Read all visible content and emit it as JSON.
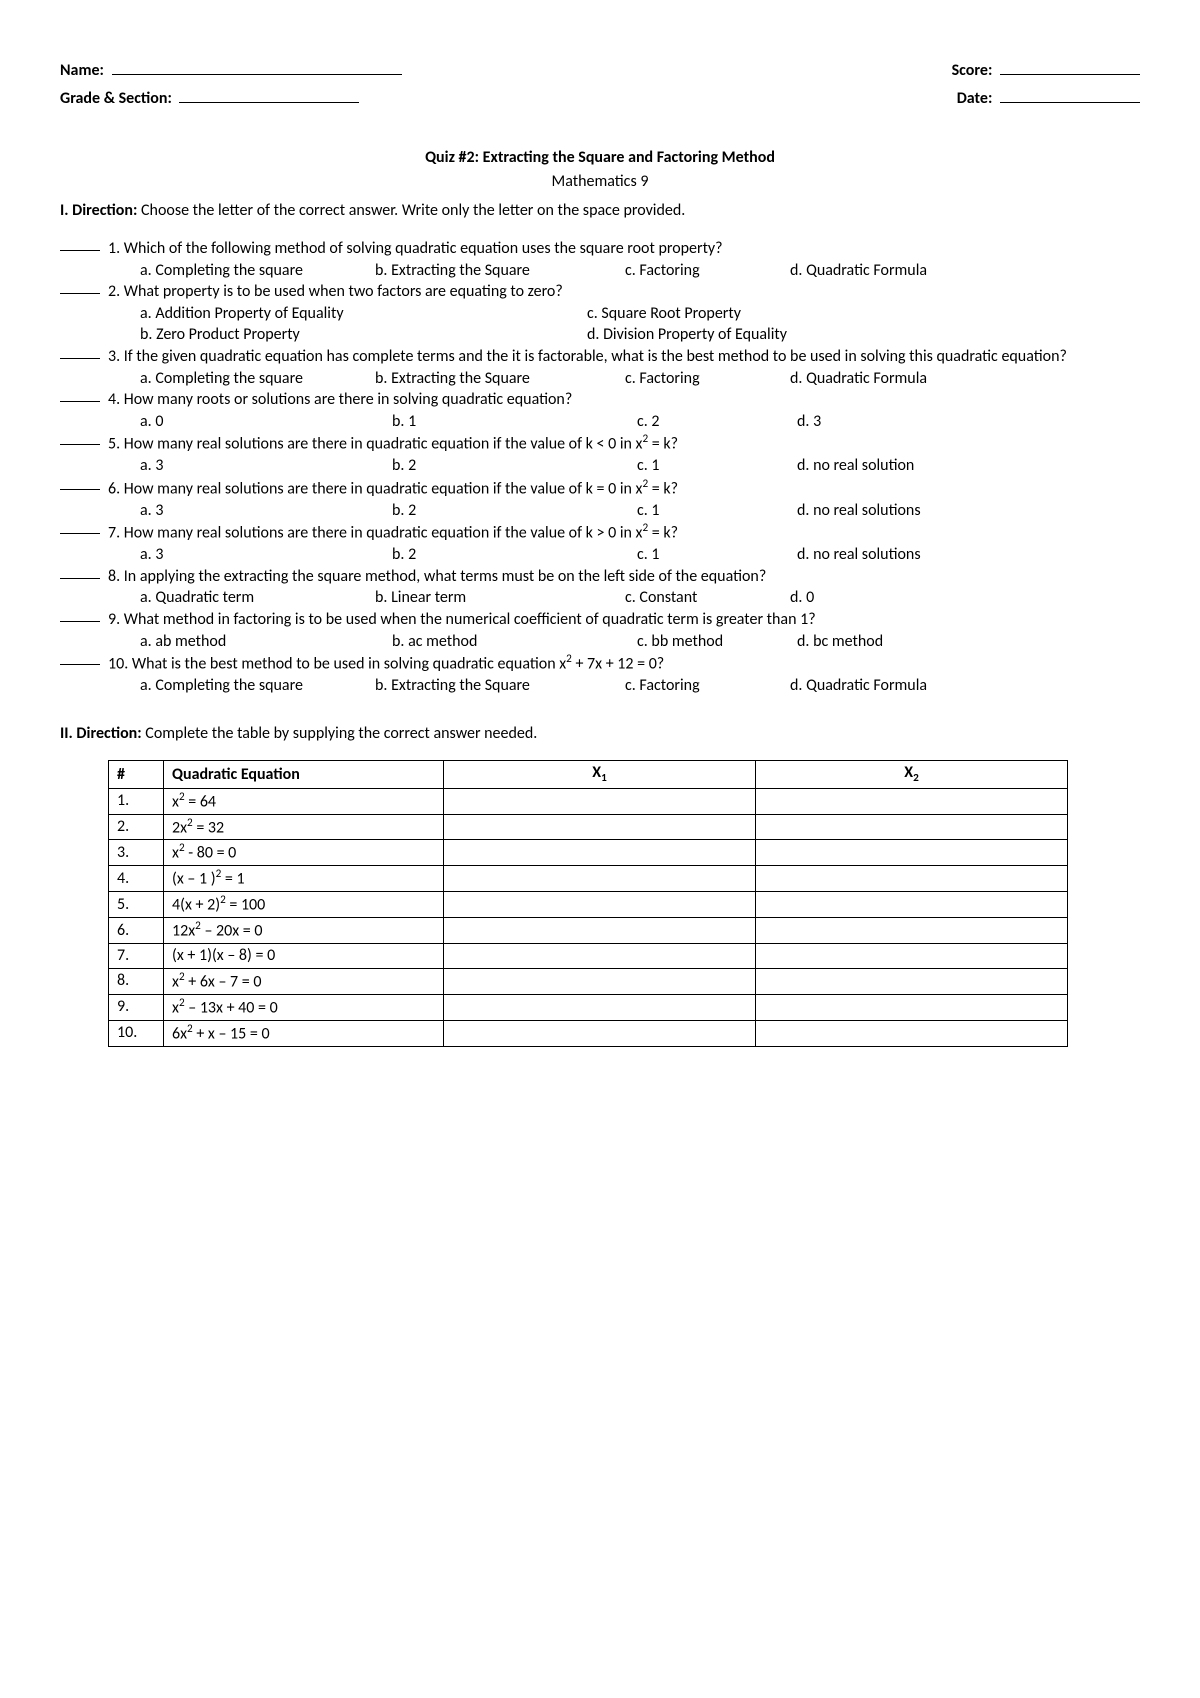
{
  "header": {
    "name_label": "Name:",
    "score_label": "Score:",
    "grade_label": "Grade & Section:",
    "date_label": "Date:"
  },
  "title": "Quiz #2: Extracting the Square and Factoring Method",
  "subtitle": "Mathematics 9",
  "section1": {
    "direction_label": "I. Direction: ",
    "direction_text": "Choose the letter of the correct answer. Write only the letter on the space provided.",
    "questions": [
      {
        "num": "1.",
        "text": "Which of the following method of solving quadratic equation uses the square root property?",
        "opts": [
          {
            "label": "a.",
            "text": "Completing the square"
          },
          {
            "label": "b.",
            "text": "Extracting the Square"
          },
          {
            "label": "c.",
            "text": "Factoring"
          },
          {
            "label": "d.",
            "text": "Quadratic Formula"
          }
        ]
      },
      {
        "num": "2.",
        "text": "What property is to be used when two factors are equating to zero?",
        "opts_layout": "2col",
        "opts": [
          {
            "label": "a.",
            "text": "Addition Property of Equality"
          },
          {
            "label": "c.",
            "text": "Square Root Property"
          },
          {
            "label": "b.",
            "text": "Zero Product Property"
          },
          {
            "label": "d.",
            "text": "Division Property of Equality"
          }
        ]
      },
      {
        "num": "3.",
        "text": "If the given quadratic equation has complete terms and the it is factorable, what is the best method to be used in solving this quadratic equation?",
        "opts": [
          {
            "label": "a.",
            "text": "Completing the square"
          },
          {
            "label": "b.",
            "text": "Extracting the Square"
          },
          {
            "label": "c.",
            "text": "Factoring"
          },
          {
            "label": "d.",
            "text": "Quadratic Formula"
          }
        ]
      },
      {
        "num": "4.",
        "text": "How many roots or solutions are there in solving quadratic equation?",
        "opts": [
          {
            "label": "a.",
            "text": "0"
          },
          {
            "label": "b.",
            "text": "1"
          },
          {
            "label": "c.",
            "text": "2"
          },
          {
            "label": "d.",
            "text": "3"
          }
        ]
      },
      {
        "num": "5.",
        "text_html": "How many real solutions are there in quadratic equation if the value of k < 0 in x<sup>2</sup> = k?",
        "opts": [
          {
            "label": "a.",
            "text": "3"
          },
          {
            "label": "b.",
            "text": "2"
          },
          {
            "label": "c.",
            "text": "1"
          },
          {
            "label": "d.",
            "text": "no real solution"
          }
        ]
      },
      {
        "num": "6.",
        "text_html": "How many real solutions are there in quadratic equation if the value of k = 0 in x<sup>2</sup> = k?",
        "opts": [
          {
            "label": "a.",
            "text": "3"
          },
          {
            "label": "b.",
            "text": "2"
          },
          {
            "label": "c.",
            "text": "1"
          },
          {
            "label": "d.",
            "text": "no real solutions"
          }
        ]
      },
      {
        "num": "7.",
        "text_html": "How many real solutions are there in quadratic equation if the value of k > 0 in x<sup>2</sup> = k?",
        "opts": [
          {
            "label": "a.",
            "text": "3"
          },
          {
            "label": "b.",
            "text": "2"
          },
          {
            "label": "c.",
            "text": "1"
          },
          {
            "label": "d.",
            "text": "no real solutions"
          }
        ]
      },
      {
        "num": "8.",
        "text": " In applying the extracting the square method, what terms must be on the left side of the equation?",
        "opts": [
          {
            "label": "a.",
            "text": "Quadratic term"
          },
          {
            "label": "b.",
            "text": "Linear term"
          },
          {
            "label": "c.",
            "text": "Constant"
          },
          {
            "label": "d.",
            "text": "0"
          }
        ]
      },
      {
        "num": "9.",
        "text": "What method in factoring is to be used when the numerical coefficient of quadratic term is greater than 1?",
        "opts": [
          {
            "label": "a.",
            "text": " ab method"
          },
          {
            "label": "b.",
            "text": "ac method"
          },
          {
            "label": "c.",
            "text": "bb method"
          },
          {
            "label": "d.",
            "text": "bc method"
          }
        ]
      },
      {
        "num": "10.",
        "text_html": "What is the best method to be used in solving quadratic equation x<sup>2</sup> + 7x + 12 = 0?",
        "opts": [
          {
            "label": "a.",
            "text": "Completing the square"
          },
          {
            "label": "b.",
            "text": "Extracting the Square"
          },
          {
            "label": "c.",
            "text": "Factoring"
          },
          {
            "label": "d.",
            "text": "Quadratic Formula"
          }
        ]
      }
    ]
  },
  "section2": {
    "direction_label": "II. Direction: ",
    "direction_text": "Complete the table by supplying the correct answer needed.",
    "columns": {
      "num": "#",
      "eq": "Quadratic Equation",
      "x1_html": "X<sub>1</sub>",
      "x2_html": "X<sub>2</sub>"
    },
    "rows": [
      {
        "num": "1.",
        "eq_html": "x<sup>2</sup> = 64"
      },
      {
        "num": "2.",
        "eq_html": "2x<sup>2</sup> = 32"
      },
      {
        "num": "3.",
        "eq_html": "x<sup>2</sup> - 80 = 0"
      },
      {
        "num": "4.",
        "eq_html": "(x – 1 )<sup>2</sup> = 1"
      },
      {
        "num": "5.",
        "eq_html": "4(x + 2)<sup>2</sup> = 100"
      },
      {
        "num": "6.",
        "eq_html": "12x<sup>2</sup> – 20x = 0"
      },
      {
        "num": "7.",
        "eq_html": "(x + 1)(x – 8) = 0"
      },
      {
        "num": "8.",
        "eq_html": "x<sup>2</sup> + 6x – 7 = 0"
      },
      {
        "num": "9.",
        "eq_html": "x<sup>2</sup> – 13x + 40 = 0"
      },
      {
        "num": "10.",
        "eq_html": "6x<sup>2</sup> + x – 15 = 0"
      }
    ]
  }
}
